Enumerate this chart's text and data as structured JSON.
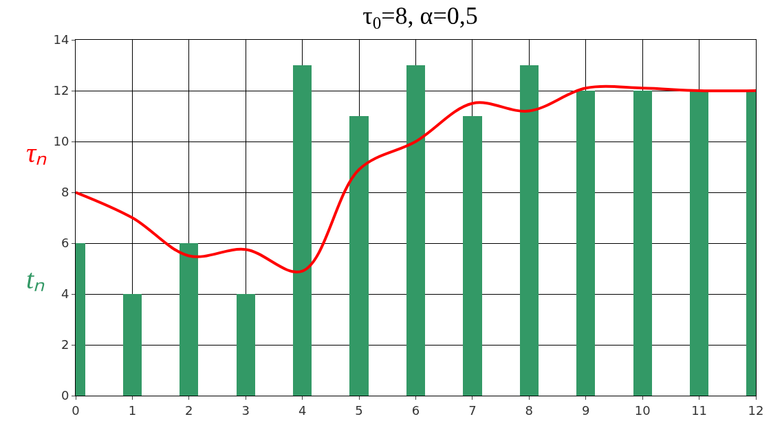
{
  "chart_data": {
    "type": "bar",
    "title": "τ$_{0}$=8, α=0,5",
    "x": [
      0,
      1,
      2,
      3,
      4,
      5,
      6,
      7,
      8,
      9,
      10,
      11,
      12
    ],
    "series": [
      {
        "name": "tₙ",
        "color": "#339966",
        "values": [
          6,
          4,
          6,
          4,
          13,
          11,
          13,
          11,
          13,
          12,
          12,
          12,
          12
        ]
      },
      {
        "name": "τₙ",
        "type": "line",
        "color": "#ff0000",
        "values": [
          8,
          7,
          5.5,
          5.75,
          4.9,
          8.9,
          10,
          11.5,
          11.2,
          12.1,
          12.1,
          12,
          12
        ]
      }
    ],
    "xlim": [
      0,
      12
    ],
    "xticks": [
      0,
      1,
      2,
      3,
      4,
      5,
      6,
      7,
      8,
      9,
      10,
      11,
      12
    ],
    "ylim": [
      0,
      14
    ],
    "yticks": [
      0,
      2,
      4,
      6,
      8,
      10,
      12,
      14
    ],
    "grid": true,
    "legend": false,
    "marker": "none"
  }
}
